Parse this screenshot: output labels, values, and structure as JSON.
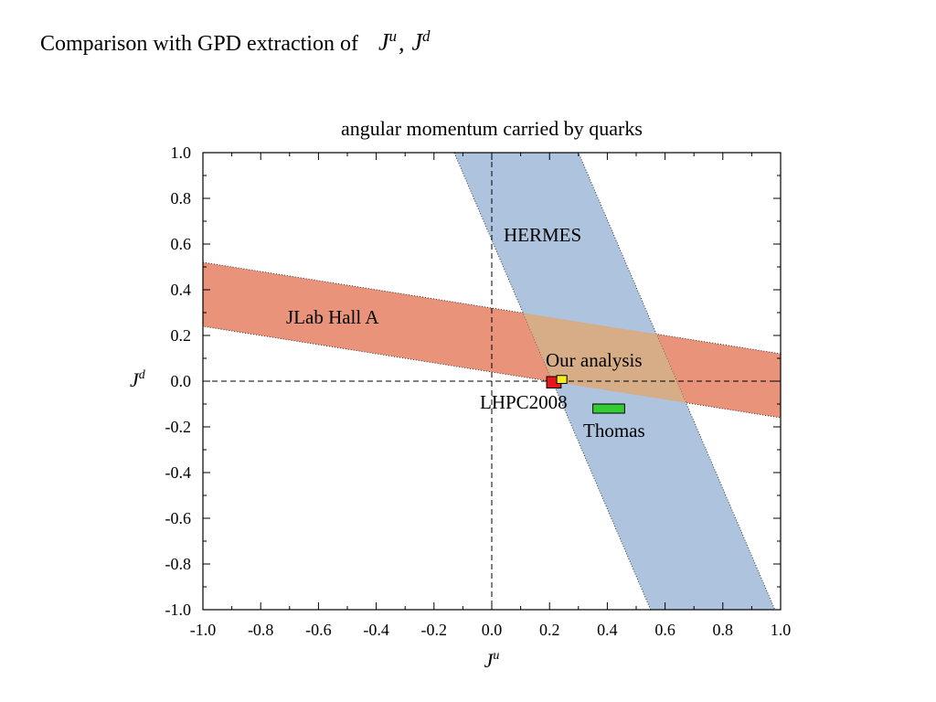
{
  "slide": {
    "title_text": "Comparison with GPD extraction of",
    "title_math": {
      "var": "J",
      "sup1": "u",
      "sup2": "d",
      "separator": ","
    }
  },
  "chart_data": {
    "type": "scatter",
    "title": "angular momentum carried by quarks",
    "xlabel": {
      "base": "J",
      "sup": "u"
    },
    "ylabel": {
      "base": "J",
      "sup": "d"
    },
    "xlim": [
      -1.0,
      1.0
    ],
    "ylim": [
      -1.0,
      1.0
    ],
    "xticks": [
      "-1.0",
      "-0.8",
      "-0.6",
      "-0.4",
      "-0.2",
      "0.0",
      "0.2",
      "0.4",
      "0.6",
      "0.8",
      "1.0"
    ],
    "yticks": [
      "-1.0",
      "-0.8",
      "-0.6",
      "-0.4",
      "-0.2",
      "0.0",
      "0.2",
      "0.4",
      "0.6",
      "0.8",
      "1.0"
    ],
    "grid": false,
    "zero_lines": true,
    "bands": [
      {
        "name": "jlab-hall-a",
        "label": "JLab Hall A",
        "color": "#E8937A",
        "polygon": [
          [
            -1.0,
            0.52
          ],
          [
            1.0,
            0.12
          ],
          [
            1.0,
            -0.16
          ],
          [
            -1.0,
            0.24
          ]
        ]
      },
      {
        "name": "hermes",
        "label": "HERMES",
        "color": "#AEC3DE",
        "polygon": [
          [
            -0.13,
            1.0
          ],
          [
            0.3,
            1.0
          ],
          [
            0.98,
            -1.0
          ],
          [
            0.55,
            -1.0
          ]
        ]
      }
    ],
    "overlap_color": "#D6AD87",
    "points": [
      {
        "name": "our-analysis",
        "label": "Our analysis",
        "color": "#E5171D",
        "x_range": [
          0.19,
          0.24
        ],
        "y_range": [
          -0.03,
          0.02
        ]
      },
      {
        "name": "lhpc2008",
        "label": "LHPC2008",
        "color": "#F2EE1C",
        "x_range": [
          0.225,
          0.26
        ],
        "y_range": [
          -0.01,
          0.025
        ]
      },
      {
        "name": "thomas",
        "label": "Thomas",
        "color": "#33CC33",
        "x_range": [
          0.35,
          0.46
        ],
        "y_range": [
          -0.14,
          -0.1
        ]
      }
    ]
  }
}
